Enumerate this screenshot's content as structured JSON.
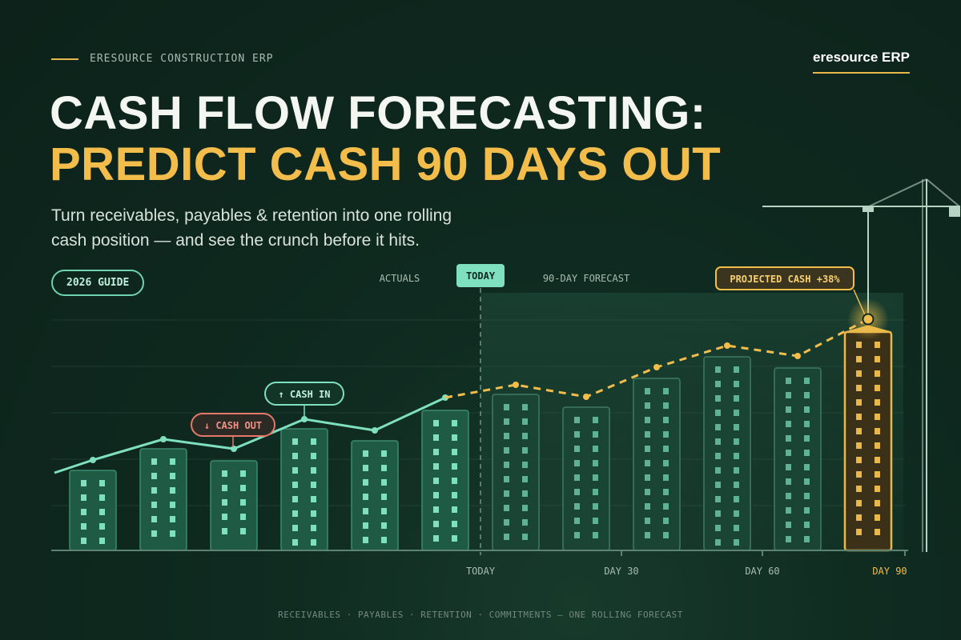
{
  "header": {
    "eyebrow": "ERESOURCE CONSTRUCTION ERP",
    "brand": "eresource ERP",
    "title_line1": "CASH FLOW FORECASTING:",
    "title_line2": "PREDICT CASH 90 DAYS OUT",
    "subtitle_line1": "Turn receivables, payables & retention into one rolling",
    "subtitle_line2": "cash position — and see the crunch before it hits.",
    "badge": "2026 GUIDE"
  },
  "chart_data": {
    "type": "bar",
    "legend": {
      "actuals": "ACTUALS",
      "today": "TODAY",
      "forecast": "90-DAY FORECAST"
    },
    "x_ticks": [
      "TODAY",
      "DAY 30",
      "DAY 60",
      "DAY 90"
    ],
    "annotations": {
      "cash_out": "↓ CASH OUT",
      "cash_in": "↑ CASH IN",
      "projected": "PROJECTED CASH +38%"
    },
    "bars": [
      {
        "phase": "actual",
        "value": 100
      },
      {
        "phase": "actual",
        "value": 127
      },
      {
        "phase": "actual",
        "value": 112
      },
      {
        "phase": "actual",
        "value": 152
      },
      {
        "phase": "actual",
        "value": 137
      },
      {
        "phase": "actual",
        "value": 175
      },
      {
        "phase": "forecast",
        "value": 195
      },
      {
        "phase": "forecast",
        "value": 179
      },
      {
        "phase": "forecast",
        "value": 215
      },
      {
        "phase": "forecast",
        "value": 242
      },
      {
        "phase": "forecast",
        "value": 228
      },
      {
        "phase": "projected",
        "value": 273
      }
    ],
    "actual_line": [
      97,
      113,
      139,
      127,
      164,
      150,
      191
    ],
    "forecast_line": [
      191,
      207,
      192,
      229,
      256,
      243,
      289
    ],
    "colors": {
      "actual_bar": "#1f5a45",
      "actual_window": "#7fe0bf",
      "forecast_bar": "#1a4434",
      "forecast_window": "#5fb393",
      "projected": "#e8b84a",
      "line": "#7fe0bf",
      "forecast_line": "#f2bd4b",
      "cash_out": "#e7776a"
    }
  },
  "footer": "RECEIVABLES · PAYABLES · RETENTION · COMMITMENTS — ONE ROLLING FORECAST"
}
